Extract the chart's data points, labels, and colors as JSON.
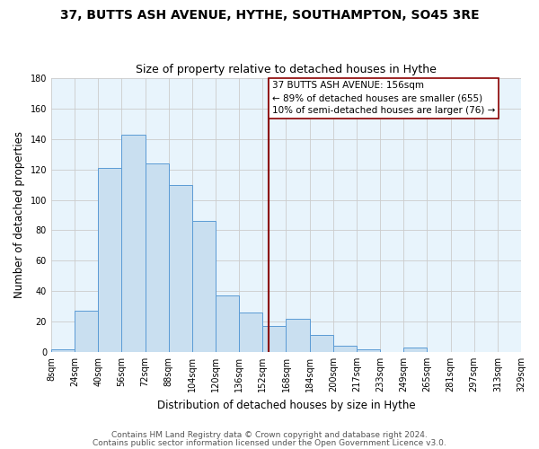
{
  "title": "37, BUTTS ASH AVENUE, HYTHE, SOUTHAMPTON, SO45 3RE",
  "subtitle": "Size of property relative to detached houses in Hythe",
  "xlabel": "Distribution of detached houses by size in Hythe",
  "ylabel": "Number of detached properties",
  "bar_values": [
    2,
    27,
    121,
    143,
    124,
    110,
    86,
    37,
    26,
    17,
    22,
    11,
    4,
    2,
    0,
    3
  ],
  "tick_labels": [
    "8sqm",
    "24sqm",
    "40sqm",
    "56sqm",
    "72sqm",
    "88sqm",
    "104sqm",
    "120sqm",
    "136sqm",
    "152sqm",
    "168sqm",
    "184sqm",
    "200sqm",
    "217sqm",
    "233sqm",
    "249sqm",
    "265sqm",
    "281sqm",
    "297sqm",
    "313sqm",
    "329sqm"
  ],
  "bar_color": "#c9dff0",
  "bar_edge_color": "#5b9bd5",
  "ref_line_color": "#8b0000",
  "annotation_box_color": "#8b0000",
  "ylim": [
    0,
    180
  ],
  "yticks": [
    0,
    20,
    40,
    60,
    80,
    100,
    120,
    140,
    160,
    180
  ],
  "grid_color": "#cccccc",
  "footer1": "Contains HM Land Registry data © Crown copyright and database right 2024.",
  "footer2": "Contains public sector information licensed under the Open Government Licence v3.0.",
  "bg_color": "#ffffff",
  "plot_bg_color": "#e8f4fc",
  "title_fontsize": 10,
  "subtitle_fontsize": 9,
  "axis_label_fontsize": 8.5,
  "tick_fontsize": 7,
  "footer_fontsize": 6.5,
  "annotation_fontsize": 7.5
}
